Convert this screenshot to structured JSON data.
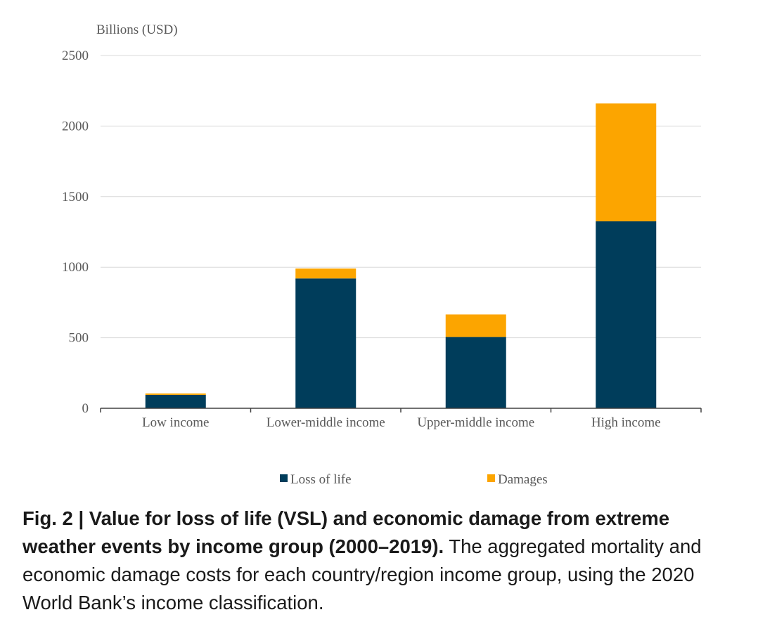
{
  "chart_data": {
    "type": "bar",
    "stacked": true,
    "ylabel": "Billions (USD)",
    "xlabel": "",
    "ylim": [
      0,
      2500
    ],
    "yticks": [
      0,
      500,
      1000,
      1500,
      2000,
      2500
    ],
    "grid": true,
    "legend_position": "bottom",
    "categories": [
      "Low income",
      "Lower-middle income",
      "Upper-middle income",
      "High income"
    ],
    "series": [
      {
        "name": "Loss of life",
        "color": "#003d5b",
        "values": [
          95,
          920,
          505,
          1325
        ]
      },
      {
        "name": "Damages",
        "color": "#fca500",
        "values": [
          10,
          70,
          160,
          835
        ]
      }
    ]
  },
  "caption": {
    "bold": "Fig. 2 | Value for loss of life (VSL) and economic damage from extreme weather events by income group (2000–2019).",
    "text": " The aggregated mortality and economic damage costs for each country/region income group, using the 2020 World Bank’s income classification."
  }
}
